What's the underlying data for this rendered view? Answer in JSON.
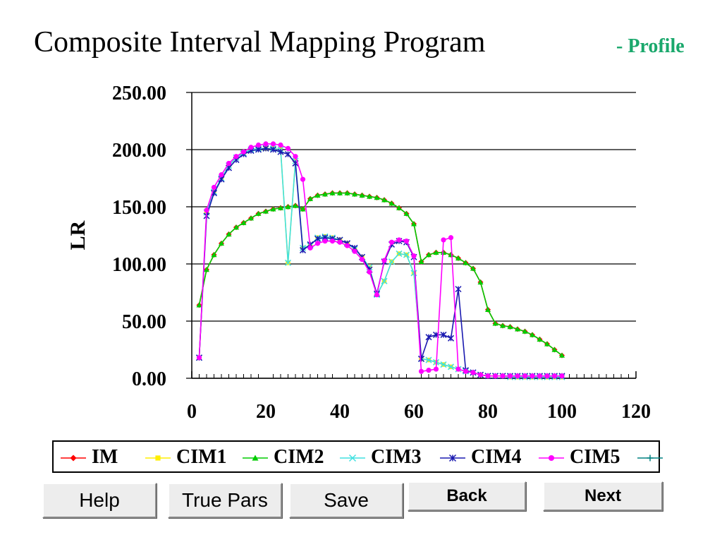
{
  "title": "Composite Interval Mapping Program",
  "subtitle": "- Profile",
  "buttons": {
    "help": "Help",
    "true_pars": "True Pars",
    "save": "Save",
    "back": "Back",
    "next": "Next"
  },
  "chart_data": {
    "type": "line",
    "title": "",
    "xlabel": "",
    "ylabel": "LR",
    "xlim": [
      0,
      120
    ],
    "ylim": [
      0,
      250
    ],
    "x_ticks": [
      "0",
      "20",
      "40",
      "60",
      "80",
      "100",
      "120"
    ],
    "y_ticks": [
      "0.00",
      "50.00",
      "100.00",
      "150.00",
      "200.00",
      "250.00"
    ],
    "grid": "horizontal",
    "legend_position": "bottom",
    "series": [
      {
        "name": "IM",
        "color": "#ff0000",
        "marker": "diamond",
        "x": [
          2,
          4,
          6,
          8,
          10,
          12,
          14,
          16,
          18,
          20,
          22,
          24,
          26,
          28,
          30,
          32,
          34,
          36,
          38,
          40,
          42,
          44,
          46,
          48,
          50,
          52,
          54,
          56,
          58,
          60,
          62,
          64,
          66,
          68,
          70,
          72,
          74,
          76,
          78,
          80,
          82,
          84,
          86,
          88,
          90,
          92,
          94,
          96,
          98,
          100
        ],
        "y": [
          64,
          95,
          108,
          118,
          126,
          132,
          136,
          140,
          144,
          146,
          148,
          149,
          150,
          151,
          148,
          157,
          160,
          161,
          162,
          162,
          162,
          161,
          160,
          159,
          158,
          156,
          153,
          149,
          144,
          135,
          102,
          108,
          110,
          110,
          108,
          105,
          101,
          96,
          84,
          60,
          48,
          46,
          45,
          43,
          41,
          38,
          34,
          30,
          25,
          20
        ]
      },
      {
        "name": "CIM1",
        "color": "#ffee00",
        "marker": "square",
        "x": [
          2,
          4,
          6,
          8,
          10,
          12,
          14,
          16,
          18,
          20,
          22,
          24,
          26,
          28,
          30,
          32,
          34,
          36,
          38,
          40,
          42,
          44,
          46,
          48,
          50,
          52,
          54,
          56,
          58,
          60,
          62,
          64,
          66,
          68,
          70,
          72,
          74,
          76,
          78,
          80,
          82,
          84,
          86,
          88,
          90,
          92,
          94,
          96,
          98,
          100
        ],
        "y": [
          18,
          145,
          163,
          175,
          186,
          193,
          197,
          200,
          201,
          201,
          201,
          200,
          101,
          190,
          114,
          116,
          123,
          124,
          123,
          121,
          118,
          113,
          106,
          97,
          73,
          85,
          102,
          109,
          108,
          92,
          17,
          16,
          14,
          12,
          10,
          8,
          6,
          5,
          3,
          2,
          2,
          2,
          1,
          1,
          1,
          1,
          1,
          1,
          1,
          1
        ]
      },
      {
        "name": "CIM2",
        "color": "#00cc00",
        "marker": "triangle",
        "x": [
          2,
          4,
          6,
          8,
          10,
          12,
          14,
          16,
          18,
          20,
          22,
          24,
          26,
          28,
          30,
          32,
          34,
          36,
          38,
          40,
          42,
          44,
          46,
          48,
          50,
          52,
          54,
          56,
          58,
          60,
          62,
          64,
          66,
          68,
          70,
          72,
          74,
          76,
          78,
          80,
          82,
          84,
          86,
          88,
          90,
          92,
          94,
          96,
          98,
          100
        ],
        "y": [
          64,
          95,
          108,
          118,
          126,
          132,
          136,
          140,
          144,
          146,
          148,
          149,
          150,
          151,
          148,
          157,
          160,
          161,
          162,
          162,
          162,
          161,
          160,
          159,
          158,
          156,
          153,
          149,
          144,
          135,
          102,
          108,
          110,
          110,
          108,
          105,
          101,
          96,
          84,
          60,
          48,
          46,
          45,
          43,
          41,
          38,
          34,
          30,
          25,
          20
        ]
      },
      {
        "name": "CIM3",
        "color": "#40e0e0",
        "marker": "x",
        "x": [
          2,
          4,
          6,
          8,
          10,
          12,
          14,
          16,
          18,
          20,
          22,
          24,
          26,
          28,
          30,
          32,
          34,
          36,
          38,
          40,
          42,
          44,
          46,
          48,
          50,
          52,
          54,
          56,
          58,
          60,
          62,
          64,
          66,
          68,
          70,
          72,
          74,
          76,
          78,
          80,
          82,
          84,
          86,
          88,
          90,
          92,
          94,
          96,
          98,
          100
        ],
        "y": [
          18,
          145,
          163,
          175,
          186,
          193,
          197,
          200,
          201,
          201,
          201,
          200,
          101,
          190,
          114,
          116,
          123,
          124,
          123,
          121,
          118,
          113,
          106,
          97,
          73,
          85,
          102,
          109,
          108,
          92,
          17,
          16,
          14,
          12,
          10,
          8,
          6,
          5,
          3,
          2,
          2,
          2,
          1,
          1,
          1,
          1,
          1,
          1,
          1,
          1
        ]
      },
      {
        "name": "CIM4",
        "color": "#1a1ab0",
        "marker": "star",
        "x": [
          2,
          4,
          6,
          8,
          10,
          12,
          14,
          16,
          18,
          20,
          22,
          24,
          26,
          28,
          30,
          32,
          34,
          36,
          38,
          40,
          42,
          44,
          46,
          48,
          50,
          52,
          54,
          56,
          58,
          60,
          62,
          64,
          66,
          68,
          70,
          72,
          74,
          76,
          78,
          80,
          82,
          84,
          86,
          88,
          90,
          92,
          94,
          96,
          98,
          100
        ],
        "y": [
          18,
          142,
          162,
          174,
          184,
          191,
          196,
          199,
          200,
          201,
          200,
          198,
          196,
          188,
          112,
          117,
          122,
          123,
          122,
          121,
          118,
          114,
          106,
          95,
          74,
          102,
          117,
          120,
          119,
          106,
          17,
          36,
          38,
          38,
          35,
          78,
          7,
          5,
          3,
          2,
          2,
          2,
          2,
          2,
          2,
          2,
          2,
          2,
          2,
          2
        ]
      },
      {
        "name": "CIM5",
        "color": "#ff00ff",
        "marker": "circle",
        "x": [
          2,
          4,
          6,
          8,
          10,
          12,
          14,
          16,
          18,
          20,
          22,
          24,
          26,
          28,
          30,
          32,
          34,
          36,
          38,
          40,
          42,
          44,
          46,
          48,
          50,
          52,
          54,
          56,
          58,
          60,
          62,
          64,
          66,
          68,
          70,
          72,
          74,
          76,
          78,
          80,
          82,
          84,
          86,
          88,
          90,
          92,
          94,
          96,
          98,
          100
        ],
        "y": [
          18,
          147,
          167,
          178,
          188,
          194,
          198,
          202,
          204,
          205,
          205,
          204,
          201,
          194,
          174,
          114,
          118,
          120,
          120,
          119,
          116,
          111,
          104,
          93,
          73,
          103,
          119,
          121,
          120,
          107,
          6,
          7,
          8,
          121,
          123,
          8,
          6,
          5,
          3,
          2,
          2,
          2,
          2,
          2,
          2,
          2,
          2,
          2,
          2,
          2
        ]
      },
      {
        "name": "",
        "color": "#008080",
        "marker": "plus",
        "x": [],
        "y": []
      }
    ]
  }
}
